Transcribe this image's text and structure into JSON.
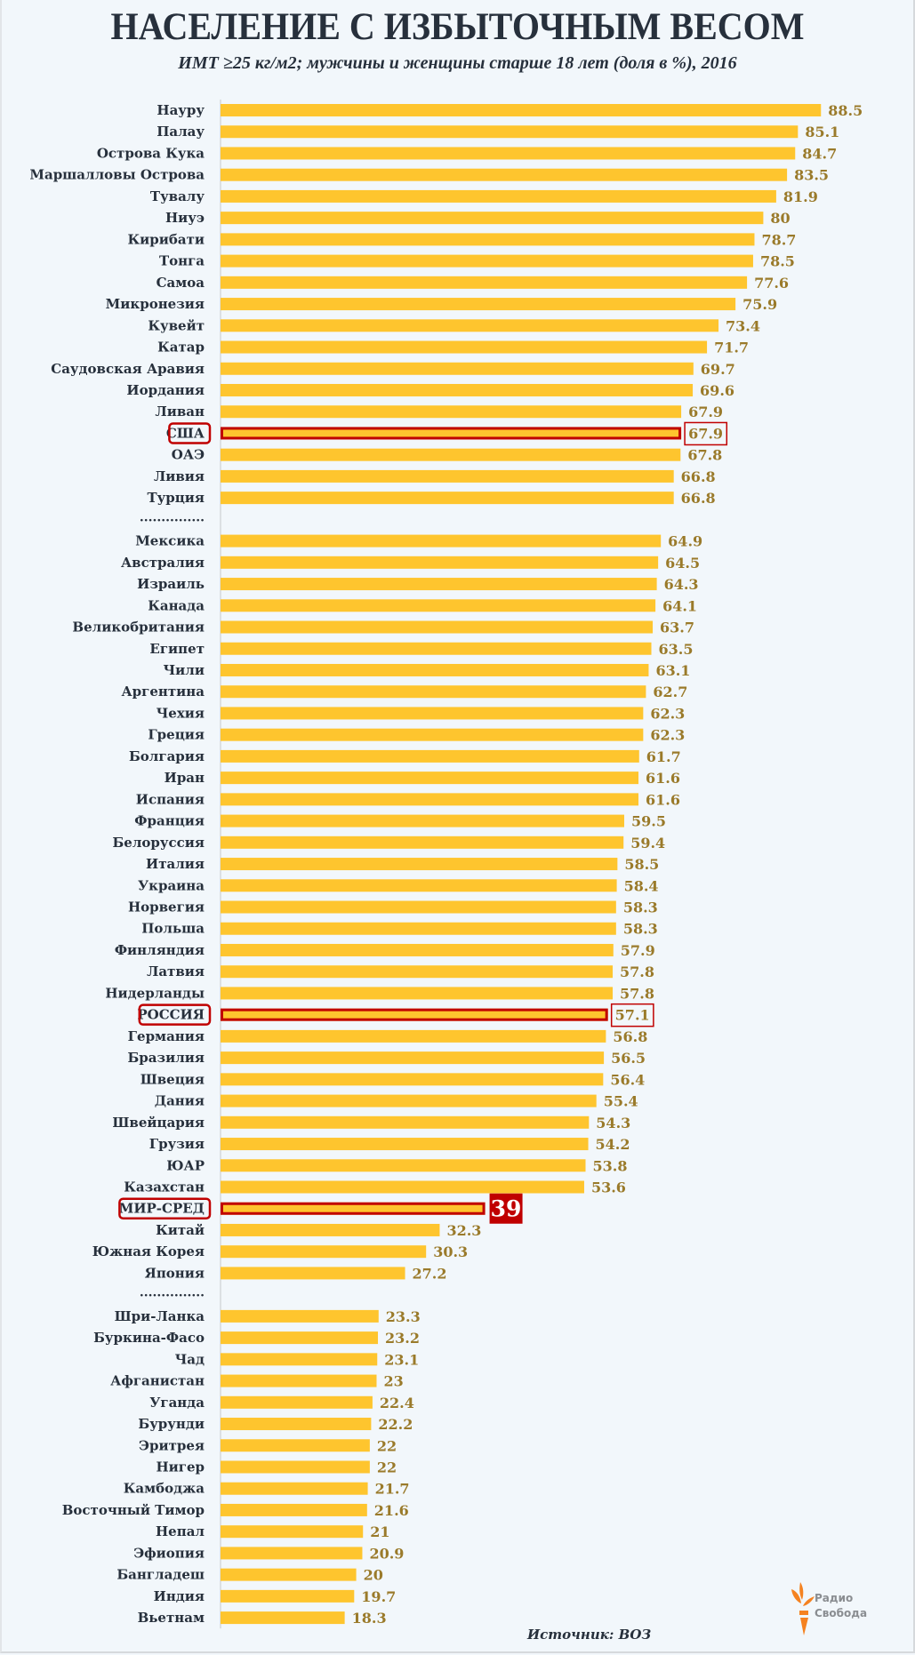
{
  "header": {
    "title": "НАСЕЛЕНИЕ С ИЗБЫТОЧНЫМ ВЕСОМ",
    "subtitle": "ИМТ ≥25 кг/м2; мужчины и женщины старше 18 лет (доля в %), 2016"
  },
  "footer": {
    "source": "Источник: ВОЗ",
    "logo_line1": "Радио",
    "logo_line2": "Свобода"
  },
  "colors": {
    "bar": "#fec52e",
    "highlight_border": "#c00000",
    "value_text": "#9a7a2a",
    "label_text": "#27303c",
    "world_badge": "#c00000",
    "logo": "#f58220"
  },
  "chart_data": {
    "type": "bar",
    "orientation": "horizontal",
    "title": "НАСЕЛЕНИЕ С ИЗБЫТОЧНЫМ ВЕСОМ",
    "subtitle": "ИМТ ≥25 кг/м2; мужчины и женщины старше 18 лет (доля в %), 2016",
    "xlabel": "",
    "ylabel": "",
    "xlim": [
      0,
      100
    ],
    "grid": false,
    "separator_label": "...............",
    "rows": [
      {
        "label": "Науру",
        "value": 88.5,
        "display": "88.5"
      },
      {
        "label": "Палау",
        "value": 85.1,
        "display": "85.1"
      },
      {
        "label": "Острова Кука",
        "value": 84.7,
        "display": "84.7"
      },
      {
        "label": "Маршалловы Острова",
        "value": 83.5,
        "display": "83.5"
      },
      {
        "label": "Тувалу",
        "value": 81.9,
        "display": "81.9"
      },
      {
        "label": "Ниуэ",
        "value": 80,
        "display": "80"
      },
      {
        "label": "Кирибати",
        "value": 78.7,
        "display": "78.7"
      },
      {
        "label": "Тонга",
        "value": 78.5,
        "display": "78.5"
      },
      {
        "label": "Самоа",
        "value": 77.6,
        "display": "77.6"
      },
      {
        "label": "Микронезия",
        "value": 75.9,
        "display": "75.9"
      },
      {
        "label": "Кувейт",
        "value": 73.4,
        "display": "73.4"
      },
      {
        "label": "Катар",
        "value": 71.7,
        "display": "71.7"
      },
      {
        "label": "Саудовская Аравия",
        "value": 69.7,
        "display": "69.7"
      },
      {
        "label": "Иордания",
        "value": 69.6,
        "display": "69.6"
      },
      {
        "label": "Ливан",
        "value": 67.9,
        "display": "67.9"
      },
      {
        "label": "США",
        "value": 67.9,
        "display": "67.9",
        "highlight": "country"
      },
      {
        "label": "ОАЭ",
        "value": 67.8,
        "display": "67.8"
      },
      {
        "label": "Ливия",
        "value": 66.8,
        "display": "66.8"
      },
      {
        "label": "Турция",
        "value": 66.8,
        "display": "66.8"
      },
      {
        "separator": true
      },
      {
        "label": "Мексика",
        "value": 64.9,
        "display": "64.9"
      },
      {
        "label": "Австралия",
        "value": 64.5,
        "display": "64.5"
      },
      {
        "label": "Израиль",
        "value": 64.3,
        "display": "64.3"
      },
      {
        "label": "Канада",
        "value": 64.1,
        "display": "64.1"
      },
      {
        "label": "Великобритания",
        "value": 63.7,
        "display": "63.7"
      },
      {
        "label": "Египет",
        "value": 63.5,
        "display": "63.5"
      },
      {
        "label": "Чили",
        "value": 63.1,
        "display": "63.1"
      },
      {
        "label": "Аргентина",
        "value": 62.7,
        "display": "62.7"
      },
      {
        "label": "Чехия",
        "value": 62.3,
        "display": "62.3"
      },
      {
        "label": "Греция",
        "value": 62.3,
        "display": "62.3"
      },
      {
        "label": "Болгария",
        "value": 61.7,
        "display": "61.7"
      },
      {
        "label": "Иран",
        "value": 61.6,
        "display": "61.6"
      },
      {
        "label": "Испания",
        "value": 61.6,
        "display": "61.6"
      },
      {
        "label": "Франция",
        "value": 59.5,
        "display": "59.5"
      },
      {
        "label": "Белоруссия",
        "value": 59.4,
        "display": "59.4"
      },
      {
        "label": "Италия",
        "value": 58.5,
        "display": "58.5"
      },
      {
        "label": "Украина",
        "value": 58.4,
        "display": "58.4"
      },
      {
        "label": "Норвегия",
        "value": 58.3,
        "display": "58.3"
      },
      {
        "label": "Польша",
        "value": 58.3,
        "display": "58.3"
      },
      {
        "label": "Финляндия",
        "value": 57.9,
        "display": "57.9"
      },
      {
        "label": "Латвия",
        "value": 57.8,
        "display": "57.8"
      },
      {
        "label": "Нидерланды",
        "value": 57.8,
        "display": "57.8"
      },
      {
        "label": "РОССИЯ",
        "value": 57.1,
        "display": "57.1",
        "highlight": "country"
      },
      {
        "label": "Германия",
        "value": 56.8,
        "display": "56.8"
      },
      {
        "label": "Бразилия",
        "value": 56.5,
        "display": "56.5"
      },
      {
        "label": "Швеция",
        "value": 56.4,
        "display": "56.4"
      },
      {
        "label": "Дания",
        "value": 55.4,
        "display": "55.4"
      },
      {
        "label": "Швейцария",
        "value": 54.3,
        "display": "54.3"
      },
      {
        "label": "Грузия",
        "value": 54.2,
        "display": "54.2"
      },
      {
        "label": "ЮАР",
        "value": 53.8,
        "display": "53.8"
      },
      {
        "label": "Казахстан",
        "value": 53.6,
        "display": "53.6"
      },
      {
        "label": "МИР-СРЕД",
        "value": 39,
        "display": "39",
        "highlight": "world"
      },
      {
        "label": "Китай",
        "value": 32.3,
        "display": "32.3"
      },
      {
        "label": "Южная Корея",
        "value": 30.3,
        "display": "30.3"
      },
      {
        "label": "Япония",
        "value": 27.2,
        "display": "27.2"
      },
      {
        "separator": true
      },
      {
        "label": "Шри-Ланка",
        "value": 23.3,
        "display": "23.3"
      },
      {
        "label": "Буркина-Фасо",
        "value": 23.2,
        "display": "23.2"
      },
      {
        "label": "Чад",
        "value": 23.1,
        "display": "23.1"
      },
      {
        "label": "Афганистан",
        "value": 23,
        "display": "23"
      },
      {
        "label": "Уганда",
        "value": 22.4,
        "display": "22.4"
      },
      {
        "label": "Бурунди",
        "value": 22.2,
        "display": "22.2"
      },
      {
        "label": "Эритрея",
        "value": 22,
        "display": "22"
      },
      {
        "label": "Нигер",
        "value": 22,
        "display": "22"
      },
      {
        "label": "Камбоджа",
        "value": 21.7,
        "display": "21.7"
      },
      {
        "label": "Восточный Тимор",
        "value": 21.6,
        "display": "21.6"
      },
      {
        "label": "Непал",
        "value": 21,
        "display": "21"
      },
      {
        "label": "Эфиопия",
        "value": 20.9,
        "display": "20.9"
      },
      {
        "label": "Бангладеш",
        "value": 20,
        "display": "20"
      },
      {
        "label": "Индия",
        "value": 19.7,
        "display": "19.7"
      },
      {
        "label": "Вьетнам",
        "value": 18.3,
        "display": "18.3"
      }
    ]
  }
}
